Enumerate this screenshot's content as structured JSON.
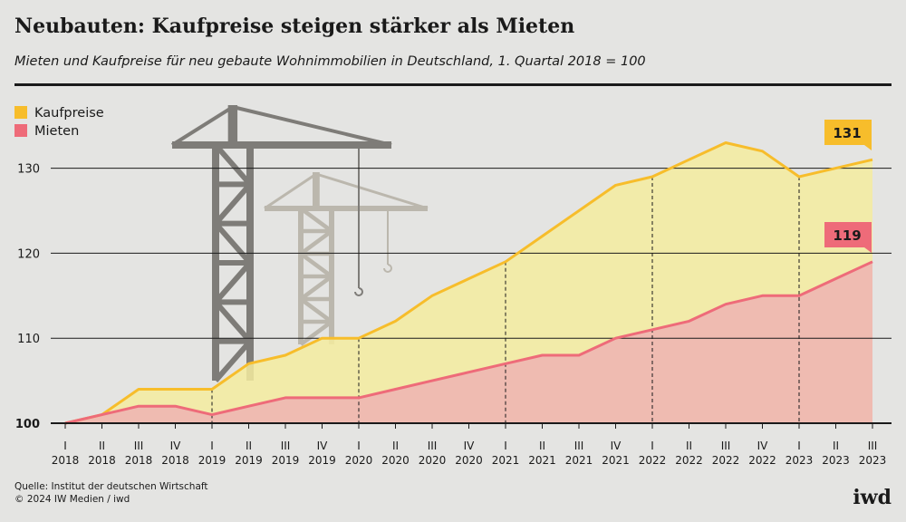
{
  "header": {
    "title": "Neubauten: Kaufpreise steigen stärker als Mieten",
    "subtitle": "Mieten und Kaufpreise für neu gebaute Wohnimmobilien in Deutschland, 1. Quartal 2018 = 100"
  },
  "footer": {
    "source": "Quelle: Institut der deutschen Wirtschaft",
    "copyright": "© 2024 IW Medien / iwd",
    "logo": "iwd"
  },
  "colors": {
    "kaufpreise_line": "#f7bd2b",
    "kaufpreise_fill": "#f5ec9f",
    "mieten_line": "#ee6b79",
    "mieten_fill": "#efbbb1",
    "badge_kauf": "#f7bd2b",
    "badge_miet": "#ee6b79",
    "crane_dark": "#7e7c78",
    "crane_light": "#bbb7ad"
  },
  "chart_data": {
    "type": "area",
    "title": "Neubauten: Kaufpreise steigen stärker als Mieten",
    "xlabel": "",
    "ylabel": "",
    "ylim": [
      100,
      131
    ],
    "yticks": [
      100,
      110,
      120,
      130
    ],
    "grid": true,
    "legend_position": "top-left",
    "quarters": [
      "I",
      "II",
      "III",
      "IV",
      "I",
      "II",
      "III",
      "IV",
      "I",
      "II",
      "III",
      "IV",
      "I",
      "II",
      "III",
      "IV",
      "I",
      "II",
      "III",
      "IV",
      "I",
      "II",
      "III"
    ],
    "years": [
      "2018",
      "2018",
      "2018",
      "2018",
      "2019",
      "2019",
      "2019",
      "2019",
      "2020",
      "2020",
      "2020",
      "2020",
      "2021",
      "2021",
      "2021",
      "2021",
      "2022",
      "2022",
      "2022",
      "2022",
      "2023",
      "2023",
      "2023"
    ],
    "year_start_markers": [
      4,
      8,
      12,
      16,
      20
    ],
    "series": [
      {
        "name": "Kaufpreise",
        "values": [
          100,
          101,
          104,
          104,
          104,
          107,
          108,
          110,
          110,
          112,
          115,
          117,
          119,
          122,
          125,
          128,
          129,
          131,
          133,
          132,
          129,
          130,
          131
        ]
      },
      {
        "name": "Mieten",
        "values": [
          100,
          101,
          102,
          102,
          101,
          102,
          103,
          103,
          103,
          104,
          105,
          106,
          107,
          108,
          108,
          110,
          111,
          112,
          114,
          115,
          115,
          117,
          119
        ]
      }
    ],
    "end_labels": {
      "kaufpreise": "131",
      "mieten": "119"
    }
  }
}
